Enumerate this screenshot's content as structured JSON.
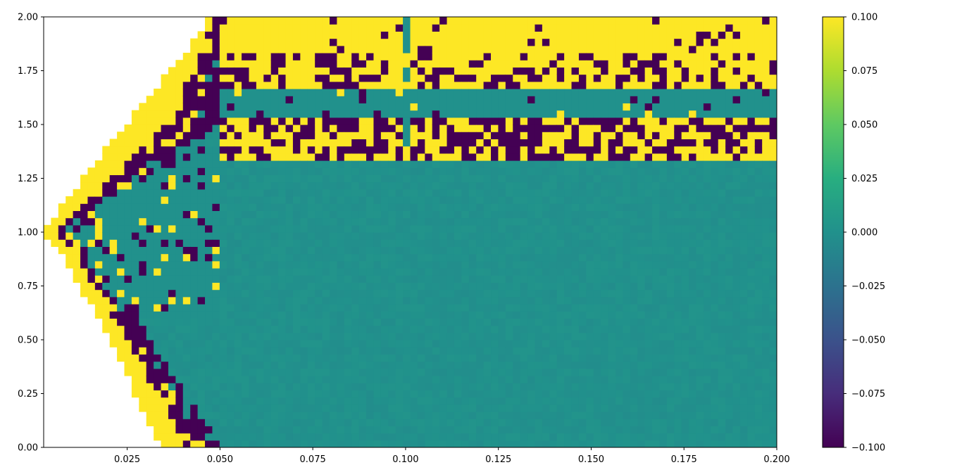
{
  "chart_data": {
    "type": "heatmap",
    "title": "",
    "xlabel": "",
    "ylabel": "",
    "xlim": [
      0.0025,
      0.2
    ],
    "ylim": [
      0.0,
      2.0
    ],
    "grid": false,
    "colormap": "viridis",
    "color_range": [
      -0.1,
      0.1
    ],
    "x_ticks": [
      0.025,
      0.05,
      0.075,
      0.1,
      0.125,
      0.15,
      0.175,
      0.2
    ],
    "x_tick_labels": [
      "0.025",
      "0.050",
      "0.075",
      "0.100",
      "0.125",
      "0.150",
      "0.175",
      "0.200"
    ],
    "y_ticks": [
      0.0,
      0.25,
      0.5,
      0.75,
      1.0,
      1.25,
      1.5,
      1.75,
      2.0
    ],
    "y_tick_labels": [
      "0.00",
      "0.25",
      "0.50",
      "0.75",
      "1.00",
      "1.25",
      "1.50",
      "1.75",
      "2.00"
    ],
    "colorbar": {
      "position": "right",
      "ticks": [
        -0.1,
        -0.075,
        -0.05,
        -0.025,
        0.0,
        0.025,
        0.05,
        0.075,
        0.1
      ],
      "tick_labels": [
        "−0.100",
        "−0.075",
        "−0.050",
        "−0.025",
        "0.000",
        "0.025",
        "0.050",
        "0.075",
        "0.100"
      ]
    },
    "grid_resolution": {
      "nx": 100,
      "ny": 60
    },
    "regions": {
      "undefined_region_color": "white",
      "stable_value": 0.0,
      "upper_saturation_value": 0.1,
      "lower_saturation_value": -0.1,
      "description_values": {
        "left_wedge_tip_y": 1.0,
        "inner_boundary_x_at_y0": 0.05,
        "outer_boundary_x_at_y0": 0.034,
        "noisy_band_y": [
          1.33,
          2.0
        ],
        "stable_stripe_y": [
          1.53,
          1.67
        ],
        "vertical_stripe_x": 0.1
      }
    }
  },
  "colors": {
    "viridis_low": "#440154",
    "viridis_mid": "#21918c",
    "viridis_high": "#fde725"
  }
}
